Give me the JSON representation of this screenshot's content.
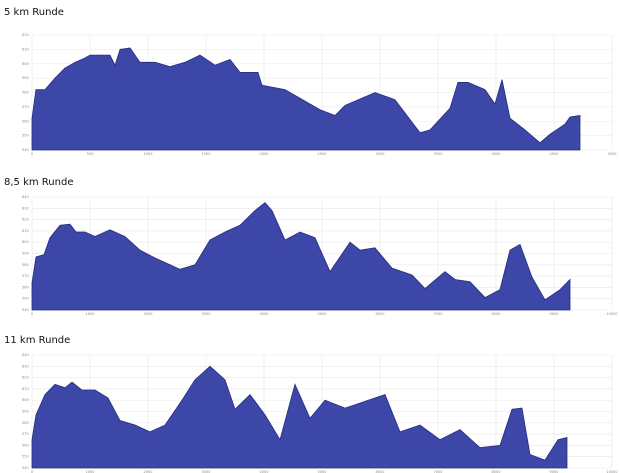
{
  "chart_data": [
    {
      "type": "area",
      "title": "5 km Runde",
      "color": "#3d47a8",
      "grid": true,
      "xlim": [
        0,
        5000
      ],
      "xticks": [
        0,
        500,
        1000,
        1500,
        2000,
        2500,
        3000,
        3500,
        4000,
        4500,
        5000
      ],
      "ylim": [
        540,
        620
      ],
      "yticks": [
        540,
        550,
        560,
        570,
        580,
        590,
        600,
        610,
        620
      ],
      "x": [
        0,
        34,
        112,
        198,
        284,
        371,
        457,
        500,
        672,
        716,
        759,
        845,
        931,
        1060,
        1190,
        1319,
        1448,
        1578,
        1707,
        1793,
        1948,
        1983,
        2181,
        2310,
        2483,
        2612,
        2698,
        2957,
        3129,
        3345,
        3431,
        3603,
        3672,
        3759,
        3905,
        3991,
        4052,
        4121,
        4250,
        4379,
        4466,
        4595,
        4638,
        4724
      ],
      "values": [
        562,
        582,
        582,
        590,
        597,
        601,
        604,
        606,
        606,
        599,
        610,
        611,
        601,
        601,
        598,
        601,
        606,
        599,
        603,
        594,
        594,
        585,
        582,
        576,
        568,
        564,
        571,
        580,
        575,
        552,
        554,
        569,
        587,
        587,
        582,
        572,
        589,
        562,
        554,
        545,
        551,
        558,
        563,
        564
      ]
    },
    {
      "type": "area",
      "title": "8,5 km Runde",
      "color": "#3d47a8",
      "grid": true,
      "xlim": [
        0,
        10000
      ],
      "xticks": [
        0,
        1000,
        2000,
        3000,
        4000,
        5000,
        6000,
        7000,
        8000,
        9000,
        10000
      ],
      "ylim": [
        540,
        640
      ],
      "yticks": [
        540,
        550,
        560,
        570,
        580,
        590,
        600,
        610,
        620,
        630,
        640
      ],
      "x": [
        0,
        69,
        207,
        310,
        483,
        655,
        759,
        914,
        1086,
        1345,
        1603,
        1862,
        2121,
        2379,
        2552,
        2810,
        3069,
        3328,
        3586,
        3845,
        4017,
        4138,
        4362,
        4621,
        4879,
        5138,
        5483,
        5655,
        5914,
        6207,
        6552,
        6776,
        7121,
        7293,
        7552,
        7810,
        8069,
        8241,
        8414,
        8621,
        8845,
        9103,
        9276
      ],
      "values": [
        564,
        587,
        589,
        604,
        615,
        616,
        609,
        609,
        605,
        611,
        605,
        593,
        586,
        580,
        576,
        580,
        602,
        609,
        615,
        628,
        635,
        628,
        602,
        609,
        604,
        574,
        600,
        593,
        595,
        577,
        571,
        559,
        574,
        567,
        565,
        551,
        558,
        593,
        598,
        569,
        549,
        558,
        567
      ]
    },
    {
      "type": "area",
      "title": "11 km Runde",
      "color": "#3d47a8",
      "grid": true,
      "xlim": [
        0,
        10000
      ],
      "xticks": [
        0,
        1000,
        2000,
        3000,
        4000,
        5000,
        6000,
        7000,
        8000,
        9000,
        10000
      ],
      "ylim": [
        540,
        640
      ],
      "yticks": [
        540,
        550,
        560,
        570,
        580,
        590,
        600,
        610,
        620,
        630,
        640
      ],
      "x": [
        0,
        69,
        224,
        397,
        569,
        690,
        862,
        1086,
        1310,
        1517,
        1776,
        2034,
        2293,
        2586,
        2810,
        3069,
        3328,
        3500,
        3759,
        4017,
        4276,
        4534,
        4793,
        5052,
        5397,
        5741,
        6086,
        6345,
        6690,
        7034,
        7379,
        7724,
        8069,
        8276,
        8448,
        8586,
        8845,
        9069,
        9224
      ],
      "values": [
        565,
        587,
        605,
        614,
        611,
        616,
        609,
        609,
        602,
        582,
        578,
        572,
        578,
        600,
        618,
        630,
        618,
        592,
        605,
        587,
        565,
        614,
        584,
        600,
        593,
        599,
        605,
        572,
        578,
        565,
        574,
        558,
        560,
        592,
        593,
        552,
        547,
        565,
        567
      ]
    }
  ]
}
